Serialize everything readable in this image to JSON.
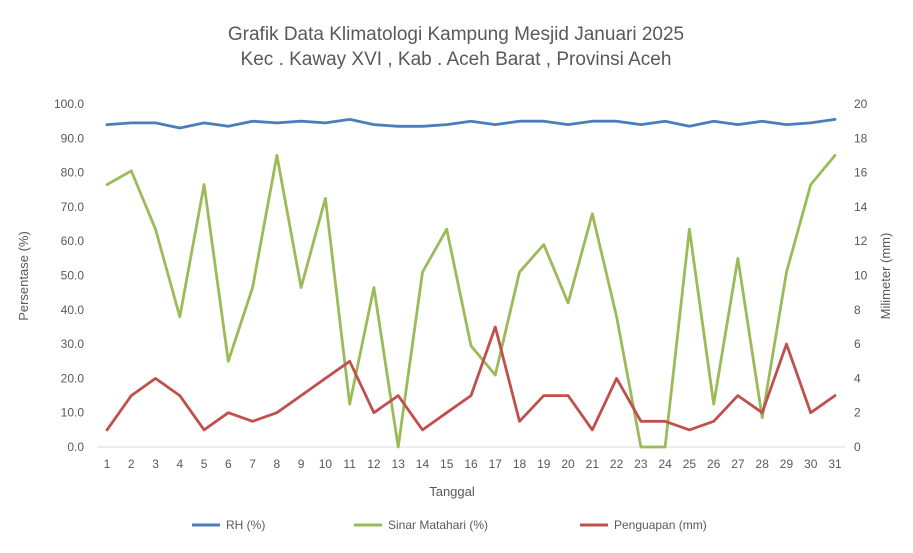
{
  "chart_data": {
    "type": "line",
    "title": "Grafik Data Klimatologi Kampung Mesjid Januari 2025",
    "subtitle": "Kec . Kaway XVI , Kab . Aceh Barat , Provinsi  Aceh",
    "xlabel": "Tanggal",
    "ylabel_left": "Persentase (%)",
    "ylabel_right": "Milimeter (mm)",
    "categories": [
      "1",
      "2",
      "3",
      "4",
      "5",
      "6",
      "7",
      "8",
      "9",
      "10",
      "11",
      "12",
      "13",
      "14",
      "15",
      "16",
      "17",
      "18",
      "19",
      "20",
      "21",
      "22",
      "23",
      "24",
      "25",
      "26",
      "27",
      "28",
      "29",
      "30",
      "31"
    ],
    "y_left": {
      "min": 0,
      "max": 100,
      "step": 10,
      "ticks": [
        "0.0",
        "10.0",
        "20.0",
        "30.0",
        "40.0",
        "50.0",
        "60.0",
        "70.0",
        "80.0",
        "90.0",
        "100.0"
      ]
    },
    "y_right": {
      "min": 0,
      "max": 20,
      "step": 2,
      "ticks": [
        "0",
        "2",
        "4",
        "6",
        "8",
        "10",
        "12",
        "14",
        "16",
        "18",
        "20"
      ]
    },
    "grid": false,
    "legend_position": "bottom",
    "series": [
      {
        "name": "RH (%)",
        "axis": "left",
        "color": "#4a7ebb",
        "values": [
          94.0,
          94.5,
          94.5,
          93.0,
          94.5,
          93.5,
          95.0,
          94.5,
          95.0,
          94.5,
          95.5,
          94.0,
          93.5,
          93.5,
          94.0,
          95.0,
          94.0,
          95.0,
          95.0,
          94.0,
          95.0,
          95.0,
          94.0,
          95.0,
          93.5,
          95.0,
          94.0,
          95.0,
          94.0,
          94.5,
          95.5
        ]
      },
      {
        "name": "Sinar Matahari (%)",
        "axis": "left",
        "color": "#9bbb59",
        "values": [
          76.5,
          80.5,
          63.5,
          38.0,
          76.5,
          25.0,
          46.5,
          85.0,
          46.5,
          72.5,
          12.5,
          46.5,
          0.0,
          51.0,
          63.5,
          29.5,
          21.0,
          51.0,
          59.0,
          42.0,
          68.0,
          38.0,
          0.0,
          0.0,
          63.5,
          12.5,
          55.0,
          8.5,
          51.0,
          76.5,
          85.0
        ]
      },
      {
        "name": "Penguapan (mm)",
        "axis": "right",
        "color": "#c0504d",
        "values": [
          1.0,
          3.0,
          4.0,
          3.0,
          1.0,
          2.0,
          1.5,
          2.0,
          3.0,
          4.0,
          5.0,
          2.0,
          3.0,
          1.0,
          2.0,
          3.0,
          7.0,
          1.5,
          3.0,
          3.0,
          1.0,
          4.0,
          1.5,
          1.5,
          1.0,
          1.5,
          3.0,
          2.0,
          6.0,
          2.0,
          3.0
        ]
      }
    ]
  }
}
